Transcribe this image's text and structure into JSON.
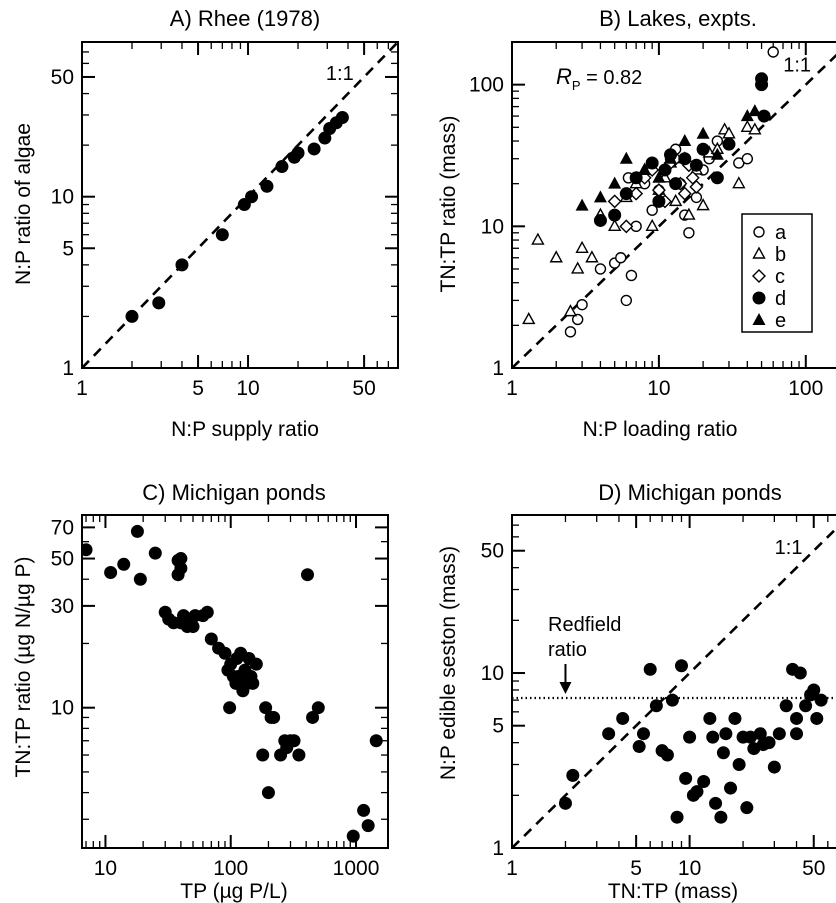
{
  "chart_data": [
    {
      "id": "A",
      "type": "scatter",
      "title": "A) Rhee (1978)",
      "xlabel": "N:P supply ratio",
      "ylabel": "N:P ratio of algae",
      "xscale": "log",
      "yscale": "log",
      "xlim": [
        1,
        80
      ],
      "ylim": [
        1,
        80
      ],
      "xticks": [
        {
          "v": 1,
          "label": "1"
        },
        {
          "v": 5,
          "label": "5"
        },
        {
          "v": 10,
          "label": "10"
        },
        {
          "v": 50,
          "label": "50"
        }
      ],
      "yticks": [
        {
          "v": 1,
          "label": "1"
        },
        {
          "v": 5,
          "label": "5"
        },
        {
          "v": 10,
          "label": "10"
        },
        {
          "v": 50,
          "label": "50"
        }
      ],
      "minor": true,
      "lines": [
        {
          "type": "one_to_one",
          "label": "1:1"
        }
      ],
      "series": [
        {
          "marker": "filled-circle",
          "x": [
            2,
            2.9,
            4,
            7,
            9.5,
            10.5,
            13,
            16,
            19,
            20,
            25,
            29,
            31,
            34,
            37
          ],
          "y": [
            2,
            2.4,
            4,
            6,
            9,
            10,
            11.5,
            15,
            17,
            18,
            19,
            22,
            25,
            27,
            29
          ]
        }
      ]
    },
    {
      "id": "B",
      "type": "scatter",
      "title": "B) Lakes, expts.",
      "xlabel": "N:P loading ratio",
      "ylabel": "TN:TP ratio (mass)",
      "xscale": "log",
      "yscale": "log",
      "xlim": [
        1,
        200
      ],
      "ylim": [
        1,
        200
      ],
      "xticks": [
        {
          "v": 1,
          "label": "1"
        },
        {
          "v": 10,
          "label": "10"
        },
        {
          "v": 100,
          "label": "100"
        }
      ],
      "yticks": [
        {
          "v": 1,
          "label": "1"
        },
        {
          "v": 10,
          "label": "10"
        },
        {
          "v": 100,
          "label": "100"
        }
      ],
      "minor": true,
      "lines": [
        {
          "type": "one_to_one",
          "label": "1:1"
        }
      ],
      "stat": {
        "symbol": "R",
        "sub": "P",
        "text": " = 0.82"
      },
      "legend": {
        "position": "right",
        "entries": [
          "a",
          "b",
          "c",
          "d",
          "e"
        ]
      },
      "series": [
        {
          "name": "a",
          "marker": "open-circle",
          "x": [
            2.5,
            2.8,
            3,
            4,
            5,
            5.5,
            6,
            6.2,
            6.5,
            7,
            8,
            9,
            10,
            11,
            12,
            13,
            14,
            15,
            16,
            18,
            20,
            22,
            25,
            30,
            35,
            40,
            60
          ],
          "y": [
            1.8,
            2.2,
            2.8,
            5,
            5.5,
            6,
            3,
            22,
            4.5,
            10,
            20,
            13,
            18,
            25,
            30,
            35,
            20,
            12,
            9,
            16,
            25,
            30,
            40,
            38,
            28,
            30,
            170
          ]
        },
        {
          "name": "b",
          "marker": "open-triangle",
          "x": [
            1.3,
            1.5,
            2,
            2.5,
            2.8,
            3,
            3.5,
            4,
            5,
            6,
            7,
            8,
            9,
            10,
            11,
            12,
            13,
            15,
            16,
            18,
            20,
            22,
            25,
            28,
            30,
            35,
            40,
            45,
            180
          ],
          "y": [
            2.2,
            8,
            6,
            2.5,
            5,
            7,
            6,
            12,
            10,
            16,
            20,
            25,
            10,
            18,
            22,
            28,
            15,
            30,
            12,
            25,
            14,
            33,
            35,
            48,
            45,
            20,
            50,
            48,
            62
          ]
        },
        {
          "name": "c",
          "marker": "open-diamond",
          "x": [
            5,
            6,
            7,
            8,
            9,
            10,
            11,
            12,
            13,
            14,
            15,
            16,
            17,
            18
          ],
          "y": [
            15,
            10,
            17,
            22,
            25,
            18,
            15,
            28,
            30,
            20,
            17,
            27,
            22,
            19
          ]
        },
        {
          "name": "d",
          "marker": "filled-circle",
          "x": [
            4,
            5,
            6,
            7,
            9,
            10,
            11,
            12,
            13,
            15,
            18,
            20,
            25,
            30,
            50,
            50,
            52
          ],
          "y": [
            11,
            12,
            17,
            22,
            28,
            15,
            25,
            32,
            20,
            30,
            27,
            35,
            22,
            38,
            100,
            110,
            60
          ]
        },
        {
          "name": "e",
          "marker": "filled-triangle",
          "x": [
            3,
            4,
            5,
            6,
            8,
            10,
            12,
            15,
            20,
            25,
            40,
            45
          ],
          "y": [
            14,
            16,
            20,
            30,
            25,
            22,
            30,
            40,
            45,
            32,
            60,
            65
          ]
        }
      ]
    },
    {
      "id": "C",
      "type": "scatter",
      "title": "C) Michigan ponds",
      "xlabel": "TP (µg P/L)",
      "ylabel": "TN:TP ratio (µg N/µg P)",
      "xscale": "log",
      "yscale": "log",
      "xlim": [
        6.5,
        1800
      ],
      "ylim": [
        2.2,
        80
      ],
      "xticks": [
        {
          "v": 10,
          "label": "10"
        },
        {
          "v": 100,
          "label": "100"
        },
        {
          "v": 1000,
          "label": "1000"
        }
      ],
      "yticks": [
        {
          "v": 10,
          "label": "10"
        },
        {
          "v": 30,
          "label": "30"
        },
        {
          "v": 50,
          "label": "50"
        },
        {
          "v": 70,
          "label": "70"
        }
      ],
      "minor": true,
      "series": [
        {
          "marker": "filled-circle",
          "x": [
            7,
            11,
            14,
            18,
            19,
            25,
            30,
            32,
            35,
            38,
            38,
            40,
            40,
            40,
            42,
            45,
            48,
            50,
            52,
            60,
            65,
            70,
            80,
            90,
            95,
            98,
            100,
            105,
            110,
            112,
            115,
            120,
            125,
            130,
            135,
            140,
            145,
            150,
            160,
            180,
            190,
            200,
            210,
            220,
            250,
            270,
            280,
            300,
            320,
            350,
            410,
            450,
            500,
            950,
            1150,
            1250,
            1450
          ],
          "y": [
            55,
            43,
            47,
            67,
            40,
            53,
            28,
            26,
            25,
            49,
            42,
            50,
            45,
            25,
            27,
            24,
            26,
            24,
            27,
            27,
            28,
            21,
            19,
            18,
            15,
            10,
            16,
            14,
            13,
            17,
            14,
            18,
            12,
            15,
            13,
            17,
            14,
            13,
            16,
            6,
            10,
            4,
            9,
            9,
            6,
            7,
            6.5,
            7,
            7,
            6,
            42,
            9,
            10,
            2.5,
            3.3,
            2.8,
            7
          ]
        }
      ]
    },
    {
      "id": "D",
      "type": "scatter",
      "title": "D) Michigan ponds",
      "xlabel": "TN:TP (mass)",
      "ylabel": "N:P edible seston (mass)",
      "xscale": "log",
      "yscale": "log",
      "xlim": [
        1,
        80
      ],
      "ylim": [
        1,
        80
      ],
      "xticks": [
        {
          "v": 1,
          "label": "1"
        },
        {
          "v": 5,
          "label": "5"
        },
        {
          "v": 10,
          "label": "10"
        },
        {
          "v": 50,
          "label": "50"
        }
      ],
      "yticks": [
        {
          "v": 1,
          "label": "1"
        },
        {
          "v": 5,
          "label": "5"
        },
        {
          "v": 10,
          "label": "10"
        },
        {
          "v": 50,
          "label": "50"
        }
      ],
      "minor": true,
      "lines": [
        {
          "type": "one_to_one",
          "label": "1:1"
        },
        {
          "type": "horizontal",
          "y": 7.2,
          "style": "dotted"
        }
      ],
      "annotations": [
        {
          "text": [
            "Redfield",
            "ratio"
          ],
          "arrow_x": 2,
          "arrow_y": 7.2
        }
      ],
      "series": [
        {
          "marker": "filled-circle",
          "x": [
            2,
            2.2,
            3.5,
            4.2,
            5.2,
            5.5,
            6,
            6.5,
            7,
            7.5,
            8,
            8.5,
            9,
            9.5,
            10,
            10.5,
            11,
            12,
            13,
            13.5,
            14,
            15,
            15.5,
            16,
            17,
            18,
            19,
            20,
            21,
            22,
            23,
            25,
            26,
            28,
            30,
            32,
            35,
            38,
            40,
            40,
            42,
            45,
            48,
            50,
            52,
            55,
            75,
            80
          ],
          "y": [
            1.8,
            2.6,
            4.5,
            5.5,
            3.8,
            4.5,
            10.5,
            6.5,
            3.6,
            3.4,
            7,
            1.5,
            11,
            2.5,
            4.3,
            2,
            2.1,
            2.4,
            5.5,
            4.3,
            1.8,
            1.5,
            3.5,
            4.5,
            2.2,
            5.5,
            3,
            4.3,
            1.7,
            4.3,
            3.7,
            4.5,
            3.9,
            4,
            2.9,
            4.5,
            6.5,
            10.5,
            4.5,
            5.5,
            10,
            6.5,
            7.5,
            8,
            5.5,
            7,
            9.5,
            4.5
          ]
        }
      ]
    }
  ]
}
